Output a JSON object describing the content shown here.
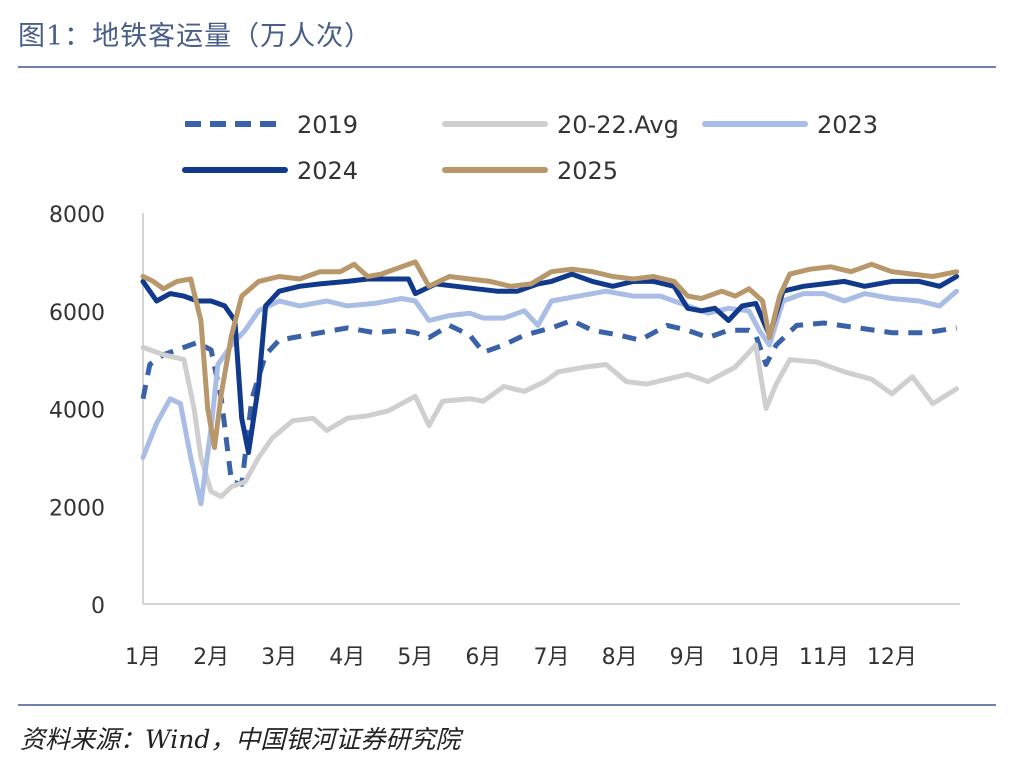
{
  "header": {
    "title": "图1：地铁客运量（万人次）"
  },
  "footer": {
    "source": "资料来源：Wind，中国银河证券研究院"
  },
  "chart_data": {
    "type": "line",
    "title": "图1：地铁客运量（万人次）",
    "xlabel": "",
    "ylabel": "",
    "ylim": [
      0,
      8000
    ],
    "yticks": [
      0,
      2000,
      4000,
      6000,
      8000
    ],
    "xlim": [
      1,
      13
    ],
    "xtick_labels": [
      "1月",
      "2月",
      "3月",
      "4月",
      "5月",
      "6月",
      "7月",
      "8月",
      "9月",
      "10月",
      "11月",
      "12月"
    ],
    "grid": false,
    "legend_position": "top",
    "series": [
      {
        "name": "2019",
        "color": "#3a62a8",
        "style": "dashed",
        "points": [
          [
            1.0,
            4200
          ],
          [
            1.1,
            4900
          ],
          [
            1.3,
            5100
          ],
          [
            1.5,
            5200
          ],
          [
            1.8,
            5350
          ],
          [
            2.0,
            5200
          ],
          [
            2.15,
            4200
          ],
          [
            2.3,
            2500
          ],
          [
            2.45,
            2450
          ],
          [
            2.6,
            4200
          ],
          [
            2.8,
            5100
          ],
          [
            3.0,
            5400
          ],
          [
            3.4,
            5500
          ],
          [
            3.8,
            5600
          ],
          [
            4.0,
            5650
          ],
          [
            4.4,
            5550
          ],
          [
            4.8,
            5600
          ],
          [
            5.0,
            5550
          ],
          [
            5.2,
            5450
          ],
          [
            5.5,
            5700
          ],
          [
            5.8,
            5500
          ],
          [
            6.0,
            5150
          ],
          [
            6.3,
            5300
          ],
          [
            6.6,
            5500
          ],
          [
            7.0,
            5650
          ],
          [
            7.3,
            5800
          ],
          [
            7.6,
            5600
          ],
          [
            8.0,
            5500
          ],
          [
            8.3,
            5400
          ],
          [
            8.7,
            5700
          ],
          [
            9.0,
            5600
          ],
          [
            9.3,
            5450
          ],
          [
            9.6,
            5600
          ],
          [
            9.9,
            5600
          ],
          [
            10.0,
            5500
          ],
          [
            10.15,
            4900
          ],
          [
            10.3,
            5300
          ],
          [
            10.6,
            5700
          ],
          [
            11.0,
            5750
          ],
          [
            11.5,
            5650
          ],
          [
            12.0,
            5550
          ],
          [
            12.5,
            5550
          ],
          [
            12.95,
            5650
          ]
        ]
      },
      {
        "name": "20-22.Avg",
        "color": "#cfcfcf",
        "style": "solid",
        "points": [
          [
            1.0,
            5250
          ],
          [
            1.3,
            5100
          ],
          [
            1.6,
            5000
          ],
          [
            1.75,
            4000
          ],
          [
            1.85,
            3000
          ],
          [
            2.0,
            2300
          ],
          [
            2.15,
            2200
          ],
          [
            2.3,
            2400
          ],
          [
            2.5,
            2500
          ],
          [
            2.7,
            3000
          ],
          [
            2.9,
            3400
          ],
          [
            3.2,
            3750
          ],
          [
            3.5,
            3800
          ],
          [
            3.7,
            3550
          ],
          [
            4.0,
            3800
          ],
          [
            4.3,
            3850
          ],
          [
            4.6,
            3950
          ],
          [
            5.0,
            4250
          ],
          [
            5.2,
            3650
          ],
          [
            5.4,
            4150
          ],
          [
            5.8,
            4200
          ],
          [
            6.0,
            4150
          ],
          [
            6.3,
            4450
          ],
          [
            6.6,
            4350
          ],
          [
            6.9,
            4550
          ],
          [
            7.1,
            4750
          ],
          [
            7.5,
            4850
          ],
          [
            7.8,
            4900
          ],
          [
            8.1,
            4550
          ],
          [
            8.4,
            4500
          ],
          [
            8.7,
            4600
          ],
          [
            9.0,
            4700
          ],
          [
            9.3,
            4550
          ],
          [
            9.5,
            4700
          ],
          [
            9.7,
            4850
          ],
          [
            10.0,
            5300
          ],
          [
            10.15,
            4000
          ],
          [
            10.3,
            4500
          ],
          [
            10.5,
            5000
          ],
          [
            10.9,
            4950
          ],
          [
            11.3,
            4750
          ],
          [
            11.7,
            4600
          ],
          [
            12.0,
            4300
          ],
          [
            12.3,
            4650
          ],
          [
            12.6,
            4100
          ],
          [
            12.95,
            4400
          ]
        ]
      },
      {
        "name": "2023",
        "color": "#a9bde5",
        "style": "solid",
        "points": [
          [
            1.0,
            3000
          ],
          [
            1.2,
            3700
          ],
          [
            1.4,
            4200
          ],
          [
            1.55,
            4100
          ],
          [
            1.7,
            3000
          ],
          [
            1.85,
            2050
          ],
          [
            2.0,
            3600
          ],
          [
            2.1,
            4900
          ],
          [
            2.3,
            5300
          ],
          [
            2.5,
            5600
          ],
          [
            2.7,
            6000
          ],
          [
            3.0,
            6200
          ],
          [
            3.3,
            6100
          ],
          [
            3.7,
            6200
          ],
          [
            4.0,
            6100
          ],
          [
            4.4,
            6150
          ],
          [
            4.8,
            6250
          ],
          [
            5.0,
            6200
          ],
          [
            5.2,
            5800
          ],
          [
            5.5,
            5900
          ],
          [
            5.8,
            5950
          ],
          [
            6.0,
            5850
          ],
          [
            6.3,
            5850
          ],
          [
            6.6,
            6000
          ],
          [
            6.8,
            5700
          ],
          [
            7.0,
            6200
          ],
          [
            7.4,
            6300
          ],
          [
            7.8,
            6400
          ],
          [
            8.2,
            6300
          ],
          [
            8.6,
            6300
          ],
          [
            9.0,
            6100
          ],
          [
            9.3,
            5950
          ],
          [
            9.6,
            6050
          ],
          [
            9.9,
            6000
          ],
          [
            10.05,
            5600
          ],
          [
            10.2,
            5300
          ],
          [
            10.4,
            6200
          ],
          [
            10.7,
            6350
          ],
          [
            11.0,
            6350
          ],
          [
            11.3,
            6200
          ],
          [
            11.6,
            6350
          ],
          [
            12.0,
            6250
          ],
          [
            12.4,
            6200
          ],
          [
            12.7,
            6100
          ],
          [
            12.95,
            6400
          ]
        ]
      },
      {
        "name": "2024",
        "color": "#123a8c",
        "style": "solid",
        "points": [
          [
            1.0,
            6600
          ],
          [
            1.2,
            6200
          ],
          [
            1.4,
            6350
          ],
          [
            1.6,
            6300
          ],
          [
            1.8,
            6200
          ],
          [
            2.0,
            6200
          ],
          [
            2.2,
            6100
          ],
          [
            2.35,
            5800
          ],
          [
            2.45,
            3800
          ],
          [
            2.55,
            3100
          ],
          [
            2.7,
            4500
          ],
          [
            2.8,
            6100
          ],
          [
            3.0,
            6400
          ],
          [
            3.3,
            6500
          ],
          [
            3.6,
            6550
          ],
          [
            4.0,
            6600
          ],
          [
            4.3,
            6650
          ],
          [
            4.6,
            6650
          ],
          [
            4.9,
            6650
          ],
          [
            5.0,
            6350
          ],
          [
            5.3,
            6550
          ],
          [
            5.6,
            6500
          ],
          [
            5.9,
            6450
          ],
          [
            6.2,
            6400
          ],
          [
            6.5,
            6400
          ],
          [
            6.8,
            6550
          ],
          [
            7.0,
            6600
          ],
          [
            7.3,
            6750
          ],
          [
            7.6,
            6600
          ],
          [
            7.9,
            6500
          ],
          [
            8.2,
            6600
          ],
          [
            8.5,
            6600
          ],
          [
            8.8,
            6500
          ],
          [
            9.0,
            6050
          ],
          [
            9.2,
            6000
          ],
          [
            9.4,
            6050
          ],
          [
            9.6,
            5800
          ],
          [
            9.8,
            6100
          ],
          [
            10.0,
            6150
          ],
          [
            10.2,
            5500
          ],
          [
            10.4,
            6400
          ],
          [
            10.7,
            6500
          ],
          [
            11.0,
            6550
          ],
          [
            11.3,
            6600
          ],
          [
            11.6,
            6500
          ],
          [
            12.0,
            6600
          ],
          [
            12.4,
            6600
          ],
          [
            12.7,
            6500
          ],
          [
            12.95,
            6700
          ]
        ]
      },
      {
        "name": "2025",
        "color": "#b8986a",
        "style": "solid",
        "points": [
          [
            1.0,
            6700
          ],
          [
            1.15,
            6600
          ],
          [
            1.3,
            6450
          ],
          [
            1.5,
            6600
          ],
          [
            1.7,
            6650
          ],
          [
            1.85,
            5800
          ],
          [
            1.95,
            4000
          ],
          [
            2.05,
            3200
          ],
          [
            2.15,
            4300
          ],
          [
            2.3,
            5500
          ],
          [
            2.45,
            6300
          ],
          [
            2.7,
            6600
          ],
          [
            3.0,
            6700
          ],
          [
            3.3,
            6650
          ],
          [
            3.6,
            6800
          ],
          [
            3.9,
            6800
          ],
          [
            4.1,
            6950
          ],
          [
            4.3,
            6700
          ],
          [
            4.5,
            6750
          ],
          [
            4.7,
            6850
          ],
          [
            5.0,
            7000
          ],
          [
            5.2,
            6500
          ],
          [
            5.5,
            6700
          ],
          [
            5.8,
            6650
          ],
          [
            6.1,
            6600
          ],
          [
            6.4,
            6500
          ],
          [
            6.7,
            6550
          ],
          [
            7.0,
            6800
          ],
          [
            7.3,
            6850
          ],
          [
            7.6,
            6800
          ],
          [
            7.9,
            6700
          ],
          [
            8.2,
            6650
          ],
          [
            8.5,
            6700
          ],
          [
            8.8,
            6600
          ],
          [
            9.0,
            6300
          ],
          [
            9.2,
            6250
          ],
          [
            9.5,
            6400
          ],
          [
            9.7,
            6300
          ],
          [
            9.9,
            6450
          ],
          [
            10.1,
            6200
          ],
          [
            10.2,
            5450
          ],
          [
            10.35,
            6300
          ],
          [
            10.5,
            6750
          ],
          [
            10.8,
            6850
          ],
          [
            11.1,
            6900
          ],
          [
            11.4,
            6800
          ],
          [
            11.7,
            6950
          ],
          [
            12.0,
            6800
          ],
          [
            12.3,
            6750
          ],
          [
            12.6,
            6700
          ],
          [
            12.95,
            6800
          ]
        ]
      }
    ]
  }
}
